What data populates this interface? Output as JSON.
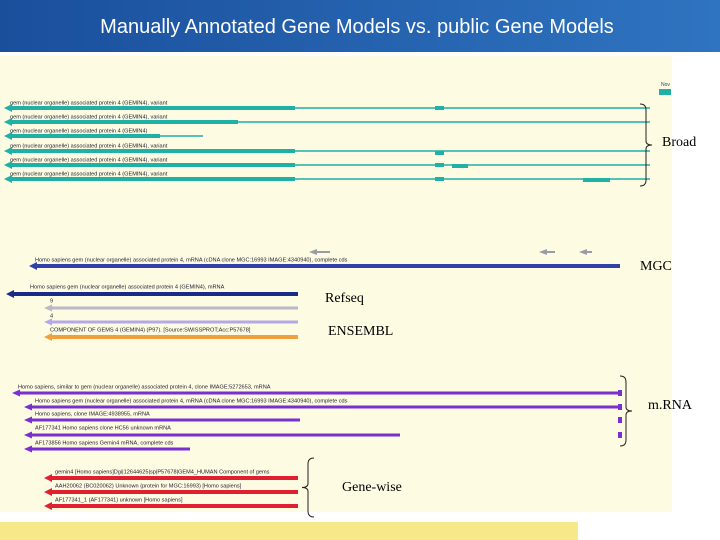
{
  "header": {
    "title": "Manually Annotated Gene Models vs. public Gene Models"
  },
  "date_tag": "Nov",
  "groups": [
    {
      "label": "Broad",
      "tracks": [
        "gem (nuclear organelle) associated protein 4 (GEMIN4), variant",
        "gem (nuclear organelle) associated protein 4 (GEMIN4), variant",
        "gem (nuclear organelle) associated protein 4 (GEMIN4)",
        "gem (nuclear organelle) associated protein 4 (GEMIN4), variant",
        "gem (nuclear organelle) associated protein 4 (GEMIN4), variant",
        "gem (nuclear organelle) associated protein 4 (GEMIN4), variant"
      ]
    },
    {
      "label": "MGC",
      "tracks": [
        "Homo sapiens gem (nuclear organelle) associated protein 4, mRNA (cDNA clone MGC:16993 IMAGE:4340940), complete cds"
      ]
    },
    {
      "label": "Refseq",
      "tracks": [
        "Homo sapiens gem (nuclear organelle) associated protein 4 (GEMIN4), mRNA"
      ]
    },
    {
      "label": "ENSEMBL",
      "tracks": [
        "9",
        "4",
        "COMPONENT OF GEMS 4 (GEMIN4) (P97). [Source:SWISSPROT;Acc:P57678]"
      ]
    },
    {
      "label": "m.RNA",
      "tracks": [
        "Homo sapiens, similar to gem (nuclear organelle) associated protein 4, clone IMAGE:5272653, mRNA",
        "Homo sapiens gem (nuclear organelle) associated protein 4, mRNA (cDNA clone MGC:16993 IMAGE:4340940), complete cds",
        "Homo sapiens, clone IMAGE:4938955, mRNA",
        "AF177341 Homo sapiens clone HC56 unknown mRNA",
        "AF173856 Homo sapiens Gemin4 mRNA, complete cds"
      ]
    },
    {
      "label": "Gene-wise",
      "tracks": [
        "gemin4 [Homo sapiens]Dgi|12644625|sp|P57678|GEM4_HUMAN Component of gems",
        "AAH20062 (BC020062) Unknown (protein for MGC:16993) [Homo sapiens]",
        "AF177341_1 (AF177341) unknown [Homo sapiens]"
      ]
    }
  ]
}
